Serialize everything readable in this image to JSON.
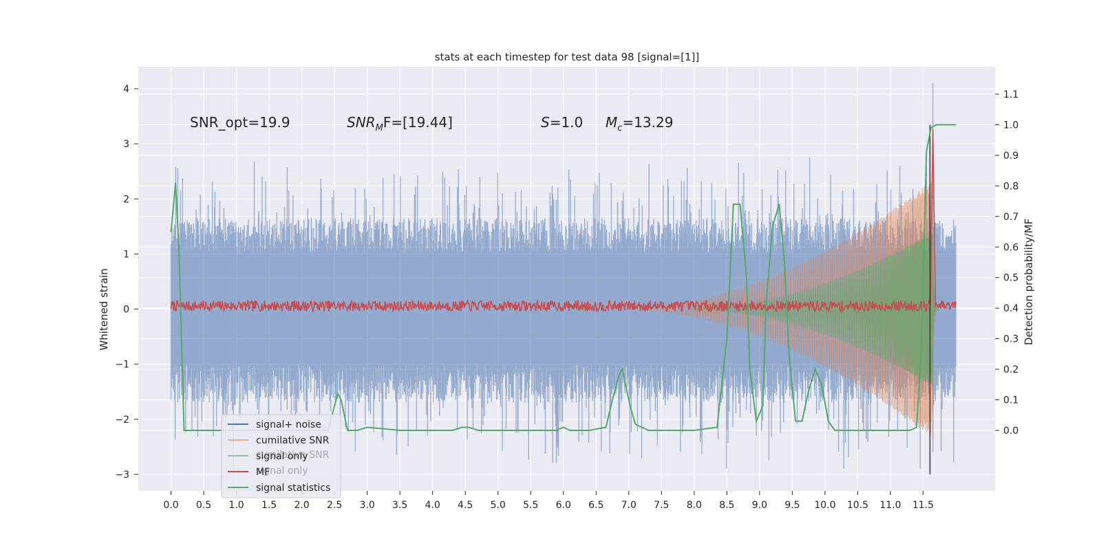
{
  "chart_data": {
    "type": "line",
    "title": "stats at each timestep for test data 98 [signal=[1]]",
    "xlabel": "",
    "ylabel": "Whitened strain",
    "y2label": "Detection probability/MF",
    "xlim": [
      -0.5,
      12.6
    ],
    "ylim": [
      -3.3,
      4.4
    ],
    "y2lim": [
      -0.198,
      1.19
    ],
    "grid": true,
    "x_ticks": [
      "0.0",
      "0.5",
      "1.0",
      "1.5",
      "2.0",
      "2.5",
      "3.0",
      "3.5",
      "4.0",
      "4.5",
      "5.0",
      "5.5",
      "6.0",
      "6.5",
      "7.0",
      "7.5",
      "8.0",
      "8.5",
      "9.0",
      "9.5",
      "10.0",
      "10.5",
      "11.0",
      "11.5"
    ],
    "y_ticks": [
      "4",
      "3",
      "2",
      "1",
      "0",
      "−1",
      "−2",
      "−3"
    ],
    "y2_ticks": [
      "1.1",
      "1.0",
      "0.9",
      "0.8",
      "0.7",
      "0.6",
      "0.5",
      "0.4",
      "0.3",
      "0.2",
      "0.1",
      "0.0"
    ],
    "annotations": {
      "snr_opt": "SNR_opt=19.9",
      "snr_mf_label": "SNR",
      "snr_mf_sub": "M",
      "snr_mf_rest": "F=[19.44]",
      "s_label": "S",
      "s_value": "=1.0",
      "mc_label": "M",
      "mc_sub": "c",
      "mc_value": "=13.29"
    },
    "marker_line_x": 11.5,
    "series": [
      {
        "name": "signal+ noise",
        "color": "#4c72b0",
        "envelope": {
          "noise_pos_max": [
            1.2,
            2.9
          ],
          "noise_neg_min": [
            -1.2,
            -2.9
          ],
          "peak": {
            "x": 11.65,
            "y": 4.1
          }
        }
      },
      {
        "name": "cumilative SNR",
        "color": "#dd8452",
        "chirp": {
          "start_x": 6.9,
          "end_x": 11.65,
          "peak_amplitude": 2.35
        }
      },
      {
        "name": "signal only",
        "color": "#55a868",
        "chirp": {
          "start_x": 7.9,
          "end_x": 11.65,
          "peak_amplitude": 1.4
        }
      },
      {
        "name": "MF",
        "color": "#c44e52",
        "baseline": 0.4,
        "peak": {
          "x": 11.65,
          "y": 0.99
        }
      },
      {
        "name": "signal statistics",
        "color": "#55a868",
        "axis": "right",
        "x": [
          0.0,
          0.07,
          0.12,
          0.2,
          0.3,
          0.5,
          1.0,
          1.5,
          2.0,
          2.4,
          2.55,
          2.6,
          2.65,
          2.7,
          2.85,
          3.0,
          3.5,
          4.0,
          4.3,
          4.45,
          4.55,
          4.7,
          5.0,
          5.5,
          5.9,
          6.0,
          6.1,
          6.4,
          6.65,
          6.75,
          6.85,
          6.9,
          6.95,
          7.02,
          7.1,
          7.3,
          8.0,
          8.35,
          8.5,
          8.6,
          8.7,
          8.8,
          8.85,
          8.95,
          9.05,
          9.1,
          9.2,
          9.3,
          9.38,
          9.45,
          9.55,
          9.65,
          9.75,
          9.85,
          9.95,
          10.05,
          10.15,
          10.3,
          10.5,
          11.0,
          11.3,
          11.4,
          11.48,
          11.55,
          11.62,
          11.7,
          11.8,
          11.9,
          12.0
        ],
        "y": [
          0.65,
          0.81,
          0.6,
          0.0,
          0.0,
          0.0,
          0.0,
          0.0,
          0.0,
          0.0,
          0.12,
          0.1,
          0.05,
          0.0,
          0.0,
          0.01,
          0.0,
          0.0,
          0.0,
          0.01,
          0.01,
          0.0,
          0.0,
          0.0,
          0.0,
          0.01,
          0.0,
          0.0,
          0.01,
          0.1,
          0.18,
          0.2,
          0.15,
          0.08,
          0.02,
          0.0,
          0.0,
          0.01,
          0.3,
          0.74,
          0.74,
          0.5,
          0.2,
          0.03,
          0.08,
          0.42,
          0.67,
          0.74,
          0.55,
          0.25,
          0.03,
          0.03,
          0.13,
          0.2,
          0.15,
          0.03,
          0.0,
          0.0,
          0.0,
          0.0,
          0.0,
          0.01,
          0.3,
          0.91,
          0.99,
          1.0,
          1.0,
          1.0,
          1.0
        ]
      }
    ],
    "legend": {
      "placement": "lower-left",
      "entries": [
        "signal+ noise",
        "cumilative SNR",
        "signal only",
        "MF",
        "signal statistics"
      ],
      "ghost_entries": [
        "cumilative SNR",
        "signal only"
      ]
    }
  }
}
